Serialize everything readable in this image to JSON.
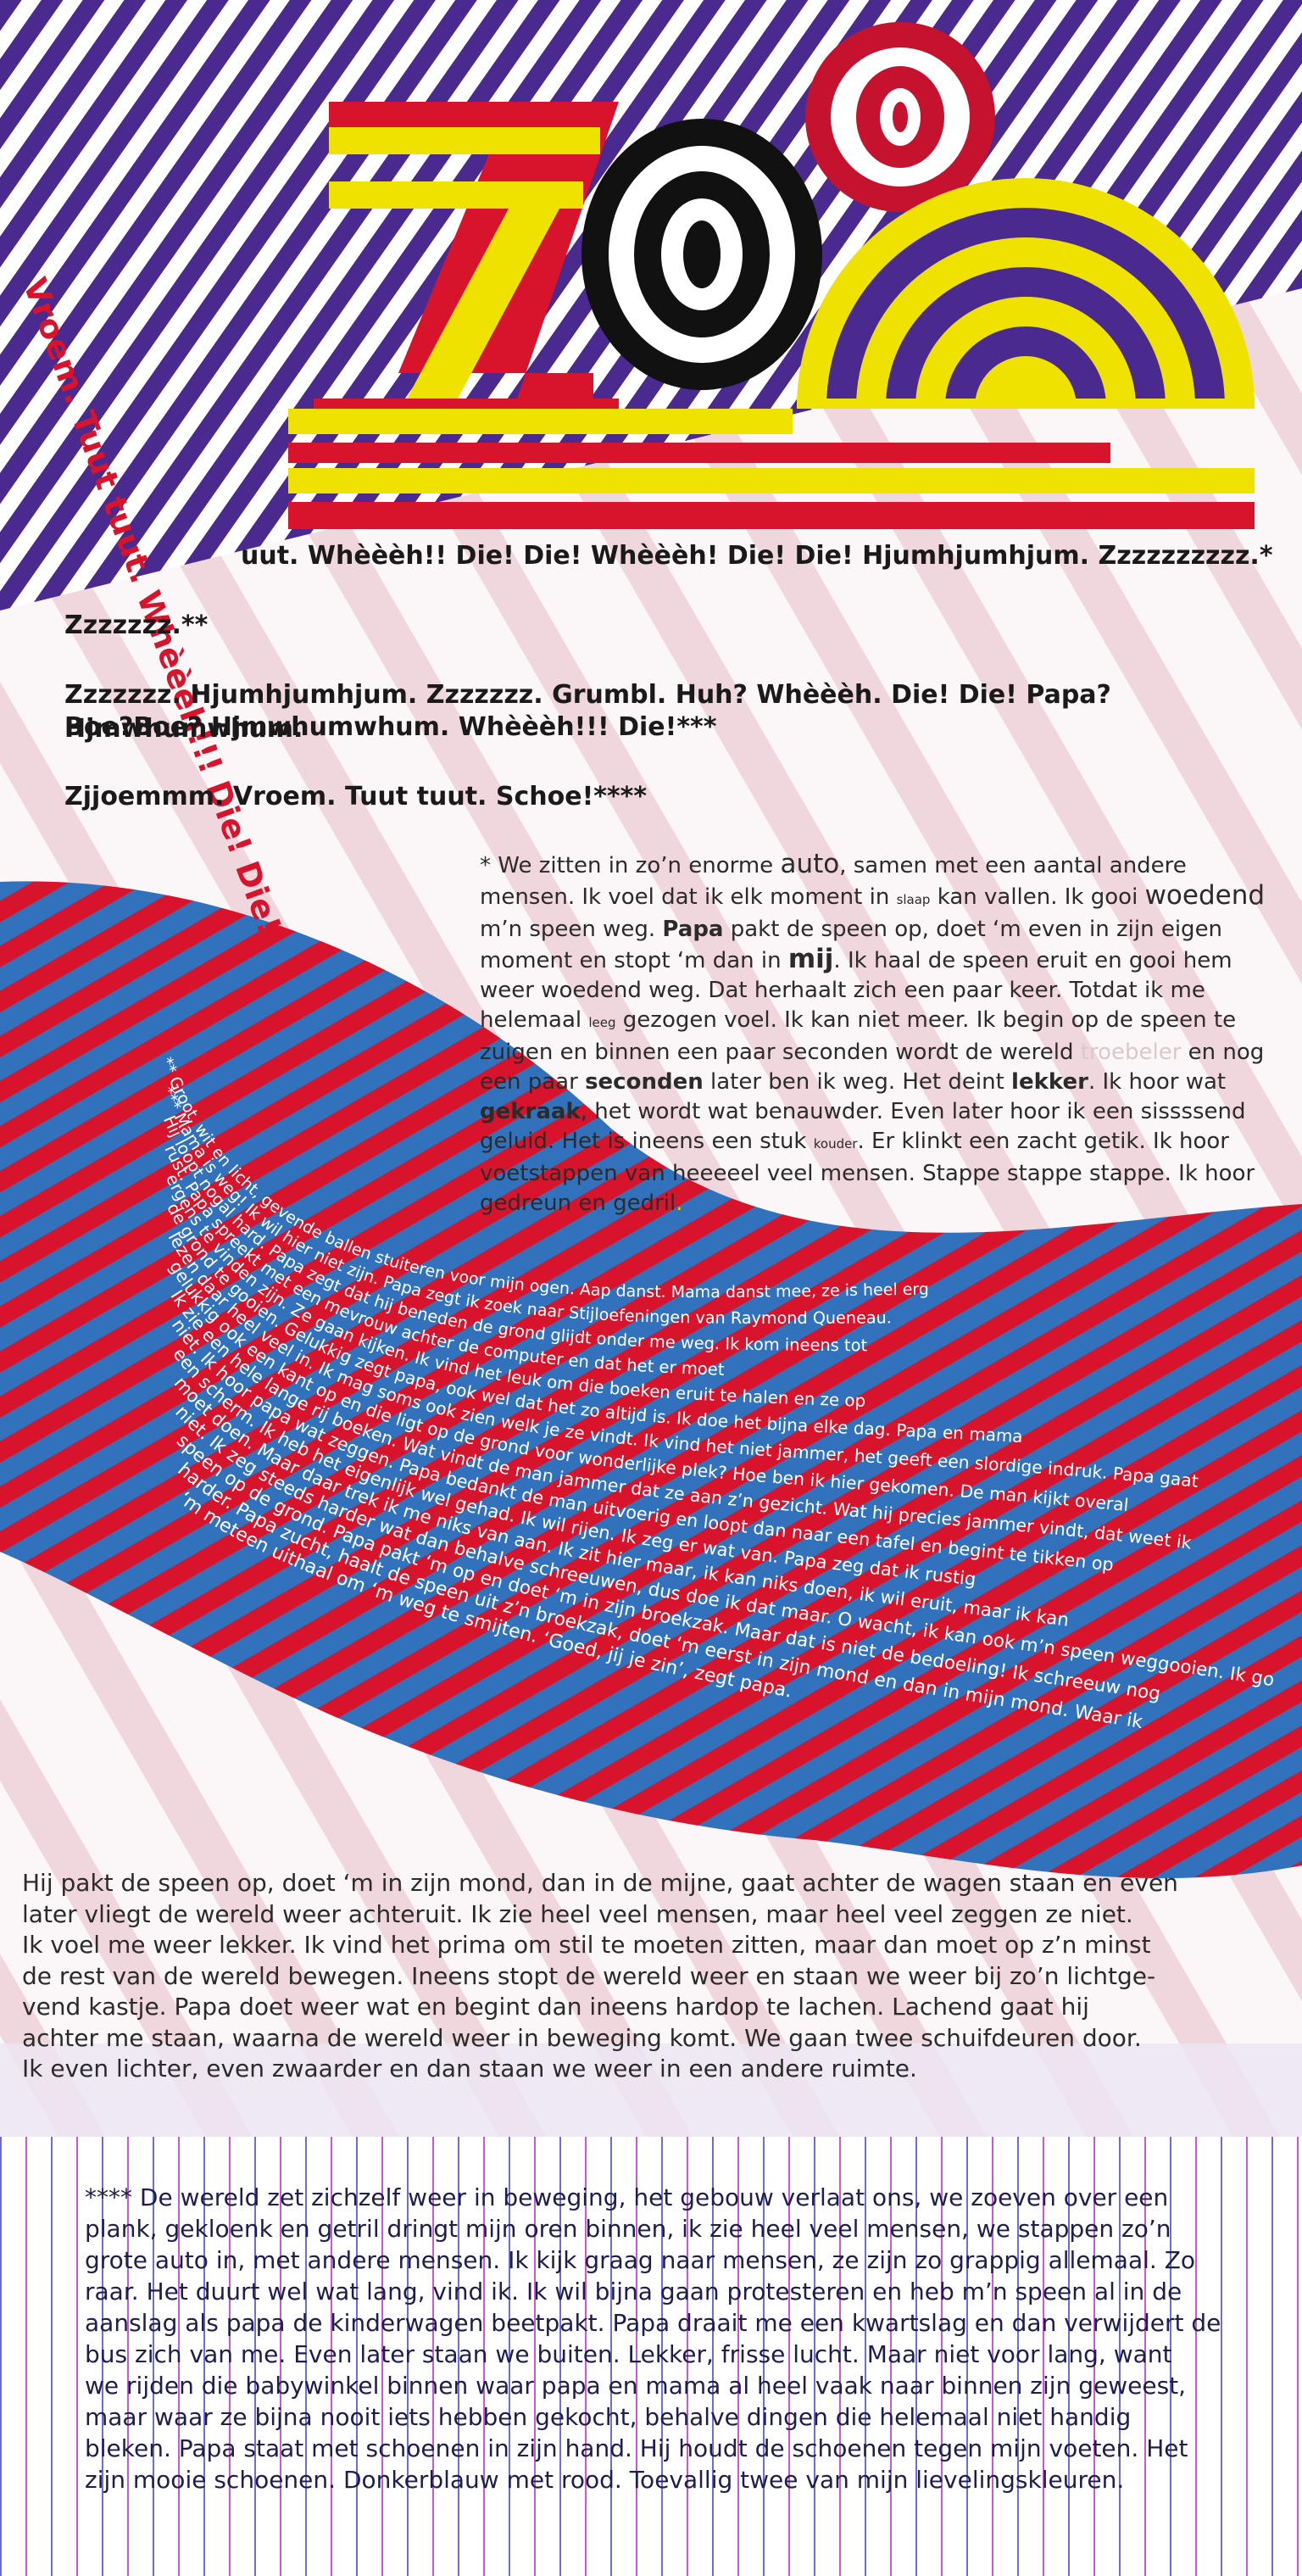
{
  "colors": {
    "purple": "#4a2a8f",
    "red": "#d8132c",
    "yellow": "#f0e200",
    "blue": "#3272bd",
    "pink_bg": "#f2dde2",
    "black": "#111111"
  },
  "title": {
    "text": "ZOO"
  },
  "vertical_text": "Vroem. Tuut tuut. Whèèèh!!! Die! Die!",
  "sounds": {
    "line1_visible": "uut. Whèèèh!! Die! Die! Whèèèh! Die! Die! Hjumhjumhjum. Zzzzzzzzzz.*",
    "line2": "Zzzzzzz.**",
    "line3a": "Zzzzzzz. Hjumhjumhjum. Zzzzzzz. Grumbl. Huh? Whèèèh. Die! Die! Papa? Hjmwhumwhum.",
    "line3b": "Boe?Boe? Hjmwhumwhum. Whèèèh!!! Die!***",
    "line4": "Zjjoemmm. Vroem. Tuut tuut. Schoe!****"
  },
  "footnote1": {
    "t1": "* We zitten in zo’n enorme ",
    "w_auto": "auto",
    "t2": ", samen met een aantal andere mensen. Ik voel dat ik elk moment in ",
    "w_slaap": "slaap",
    "t3": " kan vallen. Ik gooi ",
    "w_woedend": "woedend",
    "t4": " m’n speen weg. ",
    "w_papa": "Papa",
    "t5": " pakt de speen op, doet ‘m even in zijn eigen moment en stopt ‘m dan in ",
    "w_mij": "mij",
    "t6": ". Ik haal de speen eruit en gooi hem weer woedend weg. Dat herhaalt zich een paar keer. Totdat ik me helemaal ",
    "w_leeg": "leeg",
    "t7": " gezogen voel. Ik kan niet meer. Ik begin op de speen te zuigen en binnen een paar seconden wordt de wereld ",
    "w_troebeler": "troebeler",
    "t8": " en nog een paar ",
    "w_seconden": "seconden",
    "t9": " later ben ik weg. Het deint ",
    "w_lekker": "lekker",
    "t10": ". Ik hoor wat ",
    "w_gekraak": "gekraak",
    "t11": ", het wordt wat benauwder. Even later hoor ik een sissssend geluid. Het is ineens een stuk ",
    "w_kouder": "kouder",
    "t12": ". Er klinkt een zacht getik. Ik hoor voetstappen van heeeeel veel mensen. Stappe stappe stappe. Ik hoor gedreun en gedril",
    "t13": "."
  },
  "wave_lines": [
    "** Groot, wit en licht, gevende ballen stuiteren voor mijn ogen. Aap danst. Mama danst mee, ze is heel erg",
    "*** Mama is weg! Ik wil hier niet zijn. Papa zegt ik zoek naar Stijloefeningen van Raymond Queneau.",
    "Hij loopt nogal hard. Papa zegt dat hij beneden de grond glijdt onder me weg. Ik kom ineens tot",
    "rust. Papa spreekt met een mevrouw achter de computer en dat het er moet",
    "ergens te vinden zijn. Ze gaan kijken. Ik vind het leuk om die boeken eruit te halen en ze op",
    "de grond te gooien. Gelukkig zegt papa, ook wel dat het zo altijd is. Ik doe het bijna elke dag. Papa en mama",
    "lezen daar heel veel in. Ik mag soms ook zien welk je ze vindt. Ik vind het niet jammer, het geeft een slordige indruk. Papa gaat",
    "gelukkig ook een kant op en die ligt op de grond voor wonderlijke plek? Hoe ben ik hier gekomen. De man kijkt overal",
    "Ik zie een hele lange rij boeken. Wat vindt de man jammer dat ze aan z’n gezicht. Wat hij precies jammer vindt, dat weet ik",
    "niet. Ik hoor papa wat zeggen. Papa bedankt de man uitvoerig en loopt dan naar een tafel en begint te tikken op",
    "een scherm. Ik heb het eigenlijk wel gehad. Ik wil rijen. Ik zeg er wat van. Papa zeg dat ik rustig",
    "moet doen. Maar daar trek ik me niks van aan. Ik zit hier maar, ik kan niks doen, ik wil eruit, maar ik kan",
    "niet. Ik zeg steeds harder wat dan behalve schreeuwen, dus doe ik dat maar. O wacht, ik kan ook m’n speen weggooien. Ik gooi m’n",
    "speen op de grond. Papa pakt ‘m op en doet ‘m in zijn broekzak. Maar dat is niet de bedoeling! Ik schreeuw nog",
    "harder. Papa zucht, haalt de speen uit z’n broekzak, doet ‘m eerst in zijn mond en dan in mijn mond. Waar ik",
    "‘m meteen uithaal om ‘m weg te smijten. ‘Goed, jij je zin’, zegt papa."
  ],
  "paragraph3": [
    "Hij pakt de speen op, doet ‘m in zijn mond, dan in de mijne, gaat achter de wagen staan en even",
    "later vliegt de wereld weer achteruit. Ik zie heel veel mensen, maar heel veel zeggen ze niet.",
    "Ik voel me weer lekker. Ik vind het prima om stil te moeten zitten, maar dan moet op z’n minst",
    "de rest van de wereld bewegen. Ineens stopt de wereld weer en staan we weer bij zo’n lichtge-",
    "vend kastje. Papa doet weer wat en begint dan ineens hardop te lachen. Lachend gaat hij",
    "achter me staan, waarna de wereld weer in beweging komt. We gaan twee schuifdeuren door.",
    "Ik even lichter, even zwaarder en dan staan we weer in een andere ruimte."
  ],
  "footnote4": [
    "**** De wereld zet zichzelf weer in beweging, het gebouw verlaat ons, we zoeven over een",
    "plank, gekloenk en getril dringt mijn oren binnen, ik zie heel veel mensen, we stappen zo’n",
    "grote auto in, met andere mensen. Ik kijk graag naar mensen, ze zijn zo grappig allemaal. Zo",
    "raar. Het duurt wel wat lang, vind ik. Ik wil bijna gaan protesteren en heb m’n speen al in de",
    "aanslag als papa de kinderwagen beetpakt. Papa draait me een kwartslag en dan verwijdert de",
    "bus zich van me. Even later staan we buiten. Lekker, frisse lucht. Maar niet voor lang, want",
    "we rijden die babywinkel binnen waar papa en mama al heel vaak naar binnen zijn geweest,",
    "maar waar ze bijna nooit iets hebben gekocht, behalve dingen die helemaal niet handig",
    "bleken. Papa staat met schoenen in zijn hand. Hij houdt de schoenen tegen mijn voeten. Het",
    "zijn mooie schoenen. Donkerblauw met rood. Toevallig twee van mijn lievelingskleuren."
  ]
}
